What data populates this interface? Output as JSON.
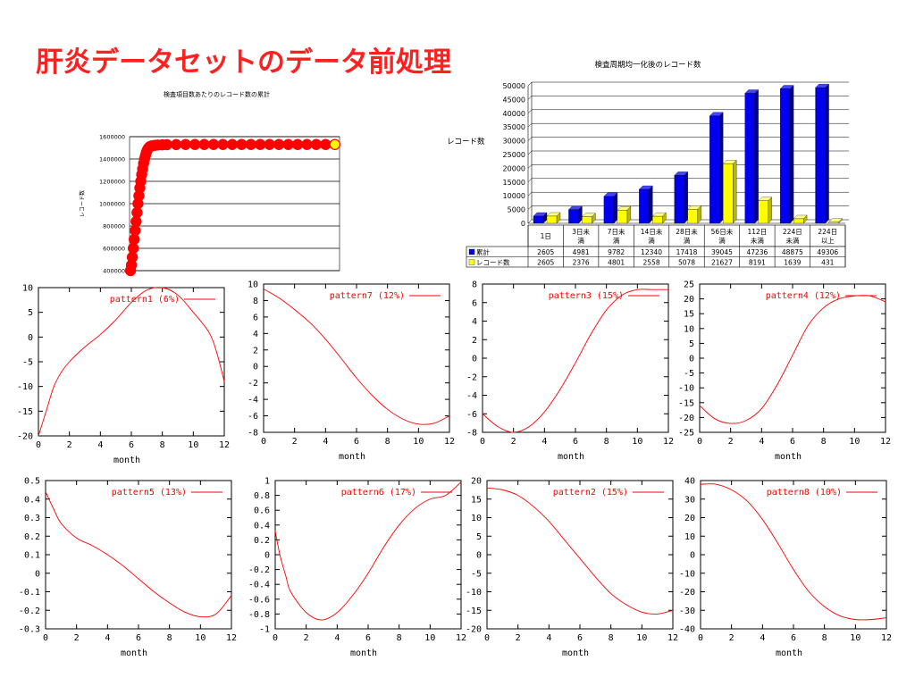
{
  "slide": {
    "title": "肝炎データセットのデータ前処理"
  },
  "chart_data": [
    {
      "type": "scatter",
      "title": "検査項目数あたりのレコード数の累計",
      "ylabel": "レコード数",
      "ylim": [
        400000,
        1600000
      ],
      "yticks": [
        1600000,
        1400000,
        1200000,
        1000000,
        800000,
        600000,
        400000
      ],
      "grid": true,
      "colors": {
        "marker_fill": "#ffff00",
        "marker_edge": "#ff0000",
        "grid": "#000000"
      },
      "points": [
        [
          1,
          400000
        ],
        [
          2,
          450000
        ],
        [
          3,
          520000
        ],
        [
          4,
          600000
        ],
        [
          5,
          680000
        ],
        [
          6,
          760000
        ],
        [
          7,
          840000
        ],
        [
          8,
          920000
        ],
        [
          9,
          1000000
        ],
        [
          10,
          1070000
        ],
        [
          11,
          1140000
        ],
        [
          12,
          1200000
        ],
        [
          13,
          1260000
        ],
        [
          14,
          1310000
        ],
        [
          15,
          1360000
        ],
        [
          16,
          1400000
        ],
        [
          17,
          1430000
        ],
        [
          18,
          1460000
        ],
        [
          19,
          1480000
        ],
        [
          20,
          1495000
        ],
        [
          21,
          1505000
        ],
        [
          22,
          1512000
        ],
        [
          24,
          1518000
        ],
        [
          27,
          1522000
        ],
        [
          30,
          1525000
        ],
        [
          35,
          1527000
        ],
        [
          40,
          1528000
        ],
        [
          50,
          1529000
        ],
        [
          60,
          1530000
        ],
        [
          70,
          1530000
        ],
        [
          80,
          1530000
        ],
        [
          90,
          1530000
        ],
        [
          100,
          1530000
        ],
        [
          110,
          1530000
        ],
        [
          120,
          1530000
        ],
        [
          130,
          1530000
        ],
        [
          140,
          1530000
        ],
        [
          150,
          1530000
        ],
        [
          160,
          1530000
        ],
        [
          170,
          1530000
        ],
        [
          180,
          1530000
        ],
        [
          190,
          1530000
        ],
        [
          200,
          1530000
        ],
        [
          210,
          1530000
        ],
        [
          220,
          1530000
        ]
      ]
    },
    {
      "type": "bar",
      "title": "検査周期均一化後のレコード数",
      "ylabel": "レコード数",
      "ylim": [
        0,
        50000
      ],
      "yticks": [
        0,
        5000,
        10000,
        15000,
        20000,
        25000,
        30000,
        35000,
        40000,
        45000,
        50000
      ],
      "categories": [
        [
          "1日"
        ],
        [
          "3日未",
          "満"
        ],
        [
          "7日未",
          "満"
        ],
        [
          "14日未",
          "満"
        ],
        [
          "28日未",
          "満"
        ],
        [
          "56日未",
          "満"
        ],
        [
          "112日",
          "未満"
        ],
        [
          "224日",
          "未満"
        ],
        [
          "224日",
          "以上"
        ]
      ],
      "series": [
        {
          "name": "累計",
          "color": "#0000ee",
          "values": [
            2605,
            4981,
            9782,
            12340,
            17418,
            39045,
            47236,
            48875,
            49306
          ]
        },
        {
          "name": "レコード数",
          "color": "#ffff00",
          "values": [
            2605,
            2376,
            4801,
            2558,
            5078,
            21627,
            8191,
            1639,
            431
          ]
        }
      ],
      "grid": true,
      "legend": "table-left"
    },
    {
      "type": "line",
      "name": "pattern1 (6%)",
      "xlabel": "month",
      "xlim": [
        0,
        12
      ],
      "ylim": [
        -20,
        10
      ],
      "xticks": [
        "0",
        "2",
        "4",
        "6",
        "8",
        "10",
        "12"
      ],
      "yticks": [
        "10",
        "5",
        "0",
        "-5",
        "-10",
        "-15",
        "-20"
      ],
      "color": "#ff0000",
      "x": [
        0,
        0.5,
        1,
        1.5,
        2,
        3,
        4,
        5,
        6,
        7,
        8,
        9,
        10,
        11,
        11.5,
        12
      ],
      "y": [
        -20,
        -15,
        -10,
        -7,
        -5,
        -2,
        0.5,
        3.5,
        7,
        9.5,
        10,
        8.5,
        5,
        1,
        -3,
        -9
      ]
    },
    {
      "type": "line",
      "name": "pattern7 (12%)",
      "xlabel": "month",
      "xlim": [
        0,
        12
      ],
      "ylim": [
        -8,
        10
      ],
      "xticks": [
        "0",
        "2",
        "4",
        "6",
        "8",
        "10",
        "12"
      ],
      "yticks": [
        "10",
        "8",
        "6",
        "4",
        "2",
        "0",
        "-2",
        "-4",
        "-6",
        "-8"
      ],
      "color": "#ff0000",
      "x": [
        0,
        1,
        2,
        3,
        4,
        5,
        6,
        7,
        8,
        9,
        10,
        11,
        12
      ],
      "y": [
        9.4,
        8.3,
        6.9,
        5.3,
        3.3,
        1.0,
        -1.4,
        -3.5,
        -5.2,
        -6.4,
        -7.0,
        -6.9,
        -6.0
      ]
    },
    {
      "type": "line",
      "name": "pattern3 (15%)",
      "xlabel": "month",
      "xlim": [
        0,
        12
      ],
      "ylim": [
        -8,
        8
      ],
      "xticks": [
        "0",
        "2",
        "4",
        "6",
        "8",
        "10",
        "12"
      ],
      "yticks": [
        "8",
        "6",
        "4",
        "2",
        "0",
        "-2",
        "-4",
        "-6",
        "-8"
      ],
      "color": "#ff0000",
      "x": [
        0,
        1,
        2,
        3,
        4,
        5,
        6,
        7,
        8,
        9,
        10,
        11,
        12
      ],
      "y": [
        -6.0,
        -7.4,
        -8.0,
        -7.4,
        -5.8,
        -3.4,
        -0.5,
        2.6,
        5.2,
        6.8,
        7.4,
        7.4,
        7.4
      ]
    },
    {
      "type": "line",
      "name": "pattern4 (12%)",
      "xlabel": "month",
      "xlim": [
        0,
        12
      ],
      "ylim": [
        -25,
        25
      ],
      "xticks": [
        "0",
        "2",
        "4",
        "6",
        "8",
        "10",
        "12"
      ],
      "yticks": [
        "25",
        "20",
        "15",
        "10",
        "5",
        "0",
        "-5",
        "-10",
        "-15",
        "-20",
        "-25"
      ],
      "color": "#ff0000",
      "x": [
        0,
        1,
        2,
        3,
        4,
        5,
        6,
        7,
        8,
        9,
        10,
        11,
        12
      ],
      "y": [
        -16,
        -20.5,
        -22,
        -21,
        -17,
        -9,
        1,
        11,
        17,
        20,
        21,
        21,
        19
      ]
    },
    {
      "type": "line",
      "name": "pattern5 (13%)",
      "xlabel": "month",
      "xlim": [
        0,
        12
      ],
      "ylim": [
        -0.3,
        0.5
      ],
      "xticks": [
        "0",
        "2",
        "4",
        "6",
        "8",
        "10",
        "12"
      ],
      "yticks": [
        "0.5",
        "0.4",
        "0.3",
        "0.2",
        "0.1",
        "0",
        "-0.1",
        "-0.2",
        "-0.3"
      ],
      "color": "#ff0000",
      "x": [
        0,
        0.5,
        1,
        2,
        3,
        4,
        5,
        6,
        7,
        8,
        9,
        10,
        11,
        12
      ],
      "y": [
        0.44,
        0.35,
        0.27,
        0.19,
        0.15,
        0.1,
        0.04,
        -0.03,
        -0.1,
        -0.16,
        -0.21,
        -0.235,
        -0.22,
        -0.12
      ]
    },
    {
      "type": "line",
      "name": "pattern6 (17%)",
      "xlabel": "month",
      "xlim": [
        0,
        12
      ],
      "ylim": [
        -1,
        1
      ],
      "xticks": [
        "0",
        "2",
        "4",
        "6",
        "8",
        "10",
        "12"
      ],
      "yticks": [
        "1",
        "0.8",
        "0.6",
        "0.4",
        "0.2",
        "0",
        "-0.2",
        "-0.4",
        "-0.6",
        "-0.8",
        "-1"
      ],
      "color": "#ff0000",
      "x": [
        0,
        0.3,
        0.7,
        1,
        2,
        3,
        4,
        5,
        6,
        7,
        8,
        9,
        10,
        11,
        12
      ],
      "y": [
        0.32,
        0.0,
        -0.3,
        -0.5,
        -0.78,
        -0.88,
        -0.78,
        -0.55,
        -0.25,
        0.1,
        0.4,
        0.62,
        0.75,
        0.8,
        0.98
      ]
    },
    {
      "type": "line",
      "name": "pattern2 (15%)",
      "xlabel": "month",
      "xlim": [
        0,
        12
      ],
      "ylim": [
        -20,
        20
      ],
      "xticks": [
        "0",
        "2",
        "4",
        "6",
        "8",
        "10",
        "12"
      ],
      "yticks": [
        "20",
        "15",
        "10",
        "5",
        "0",
        "-5",
        "-10",
        "-15",
        "-20"
      ],
      "color": "#ff0000",
      "x": [
        0,
        1,
        2,
        3,
        4,
        5,
        6,
        7,
        8,
        9,
        10,
        11,
        12
      ],
      "y": [
        18,
        17.5,
        16,
        13,
        9,
        4,
        -1,
        -6,
        -10.5,
        -13.5,
        -15.5,
        -16,
        -15
      ]
    },
    {
      "type": "line",
      "name": "pattern8 (10%)",
      "xlabel": "month",
      "xlim": [
        0,
        12
      ],
      "ylim": [
        -40,
        40
      ],
      "xticks": [
        "0",
        "2",
        "4",
        "6",
        "8",
        "10",
        "12"
      ],
      "yticks": [
        "40",
        "30",
        "20",
        "10",
        "0",
        "-10",
        "-20",
        "-30",
        "-40"
      ],
      "color": "#ff0000",
      "x": [
        0,
        1,
        2,
        3,
        4,
        5,
        6,
        7,
        8,
        9,
        10,
        11,
        12
      ],
      "y": [
        38,
        38,
        35,
        29,
        19,
        6,
        -8,
        -20,
        -28,
        -33,
        -35,
        -35,
        -34
      ]
    }
  ]
}
